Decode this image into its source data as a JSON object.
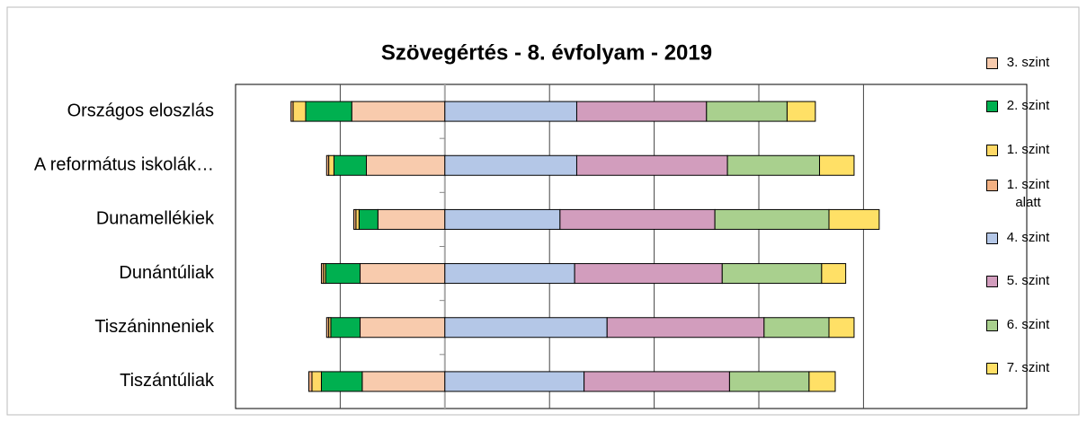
{
  "chart_data": {
    "type": "diverging_stacked_bar",
    "orientation": "horizontal",
    "title": "Szövegértés - 8. évfolyam - 2019",
    "categories": [
      "Országos eloszlás",
      "A református iskolák…",
      "Dunamellékiek",
      "Dunántúliak",
      "Tiszáninneniek",
      "Tiszántúliak"
    ],
    "series": [
      {
        "name": "3. szint",
        "color": "#F8CBAD",
        "values": [
          -8.9,
          -7.5,
          -6.4,
          -8.1,
          -8.1,
          -7.9
        ]
      },
      {
        "name": "2. szint",
        "color": "#00B050",
        "values": [
          -4.4,
          -3.1,
          -1.8,
          -3.3,
          -2.8,
          -3.9
        ]
      },
      {
        "name": "1. szint",
        "color": "#FFD966",
        "values": [
          -1.2,
          -0.5,
          -0.3,
          -0.2,
          -0.2,
          -0.9
        ]
      },
      {
        "name": "1. szint alatt",
        "color": "#F4B183",
        "values": [
          -0.2,
          -0.2,
          -0.2,
          -0.2,
          -0.2,
          -0.3
        ]
      },
      {
        "name": "4. szint",
        "color": "#B4C7E7",
        "values": [
          12.6,
          12.6,
          11.0,
          12.4,
          15.5,
          13.3
        ]
      },
      {
        "name": "5. szint",
        "color": "#D29DBD",
        "values": [
          12.4,
          14.4,
          14.8,
          14.1,
          15.0,
          13.9
        ]
      },
      {
        "name": "6. szint",
        "color": "#A9D08E",
        "values": [
          7.7,
          8.8,
          10.9,
          9.5,
          6.2,
          7.6
        ]
      },
      {
        "name": "7. szint",
        "color": "#FFE066",
        "values": [
          2.7,
          3.3,
          4.8,
          2.3,
          2.4,
          2.5
        ]
      }
    ],
    "xlim": [
      -20,
      55.6
    ],
    "xticks": [
      -10,
      10,
      20,
      30,
      40
    ],
    "grid": true,
    "legend": "right"
  }
}
